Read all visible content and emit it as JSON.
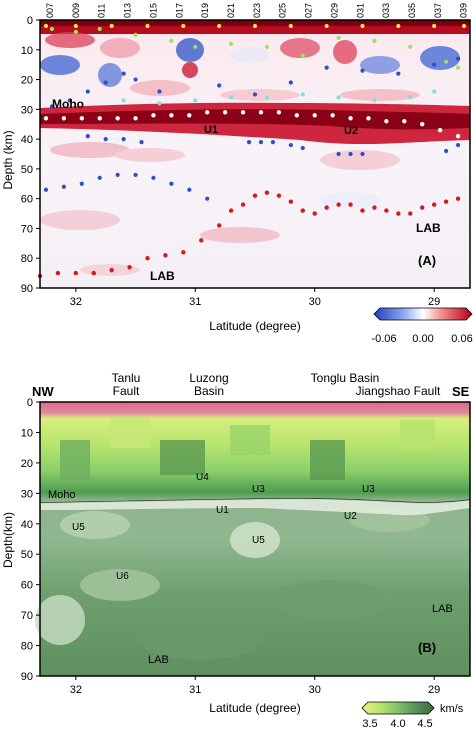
{
  "panelA": {
    "ylabel": "Depth (km)",
    "xlabel": "Latitude (degree)",
    "panel_label": "(A)",
    "annotations": {
      "moho": "Moho",
      "u1": "U1",
      "u2": "U2",
      "lab_right": "LAB",
      "lab_left": "LAB"
    },
    "colorbar": {
      "ticks": [
        "-0.06",
        "0.00",
        "0.06"
      ]
    },
    "station_labels": [
      "007",
      "009",
      "011",
      "013",
      "015",
      "017",
      "019",
      "021",
      "023",
      "025",
      "027",
      "029",
      "031",
      "033",
      "035",
      "037",
      "039"
    ],
    "colors": {
      "red": "#d7191c",
      "blue": "#2b50c8",
      "white_dot": "#ffffff"
    }
  },
  "panelB": {
    "ylabel": "Depth(km)",
    "xlabel": "Latitude (degree)",
    "panel_label": "(B)",
    "direction": {
      "left": "NW",
      "right": "SE"
    },
    "features": {
      "tanlu": [
        "Tanlu",
        "Fault"
      ],
      "luzong": [
        "Luzong",
        "Basin"
      ],
      "tonglu": "Tonglu Basin",
      "jiangshao": "Jiangshao Fault"
    },
    "annotations": {
      "moho": "Moho",
      "u1": "U1",
      "u2": "U2",
      "u3a": "U3",
      "u3b": "U3",
      "u4": "U4",
      "u5a": "U5",
      "u5b": "U5",
      "u6": "U6",
      "lab_right": "LAB",
      "lab_left": "LAB"
    },
    "colorbar": {
      "ticks": [
        "3.5",
        "4.0",
        "4.5"
      ],
      "unit": "km/s"
    }
  },
  "chart_data": [
    {
      "type": "heatmap",
      "title": "",
      "xlabel": "Latitude (degree)",
      "ylabel": "Depth (km)",
      "xlim": [
        32.3,
        28.7
      ],
      "ylim": [
        90,
        0
      ],
      "xticks": [
        32,
        31,
        30,
        29
      ],
      "yticks": [
        0,
        10,
        20,
        30,
        40,
        50,
        60,
        70,
        80,
        90
      ],
      "colorbar_range": [
        -0.06,
        0.06
      ],
      "series": [
        {
          "name": "Moho",
          "x": [
            32.25,
            32.1,
            31.95,
            31.8,
            31.65,
            31.5,
            31.35,
            31.2,
            31.05,
            30.9,
            30.75,
            30.6,
            30.45,
            30.3,
            30.15,
            30.0,
            29.85,
            29.7,
            29.55,
            29.4,
            29.25,
            29.1,
            28.95,
            28.8
          ],
          "y": [
            33,
            33,
            33,
            33,
            33,
            33,
            32,
            32,
            32,
            31,
            31,
            31,
            31,
            31,
            32,
            32,
            32,
            33,
            33,
            34,
            34,
            35,
            37,
            39
          ]
        },
        {
          "name": "LAB",
          "x": [
            32.3,
            32.15,
            32.0,
            31.85,
            31.7,
            31.55,
            31.4,
            31.25,
            31.1,
            30.95,
            30.8,
            30.7,
            30.6,
            30.5,
            30.4,
            30.3,
            30.2,
            30.1,
            30.0,
            29.9,
            29.8,
            29.7,
            29.6,
            29.5,
            29.4,
            29.3,
            29.2,
            29.1,
            29.0,
            28.9,
            28.8
          ],
          "y": [
            86,
            85,
            85,
            85,
            84,
            83,
            80,
            79,
            78,
            74,
            69,
            64,
            62,
            59,
            58,
            59,
            61,
            64,
            65,
            63,
            62,
            62,
            64,
            63,
            64,
            65,
            65,
            63,
            62,
            61,
            60
          ]
        }
      ]
    },
    {
      "type": "heatmap",
      "title": "",
      "xlabel": "Latitude (degree)",
      "ylabel": "Depth(km)",
      "xlim": [
        32.3,
        28.7
      ],
      "ylim": [
        90,
        0
      ],
      "xticks": [
        32,
        31,
        30,
        29
      ],
      "yticks": [
        0,
        10,
        20,
        30,
        40,
        50,
        60,
        70,
        80,
        90
      ],
      "colorbar_range": [
        3.5,
        4.5
      ],
      "colorbar_unit": "km/s"
    }
  ]
}
